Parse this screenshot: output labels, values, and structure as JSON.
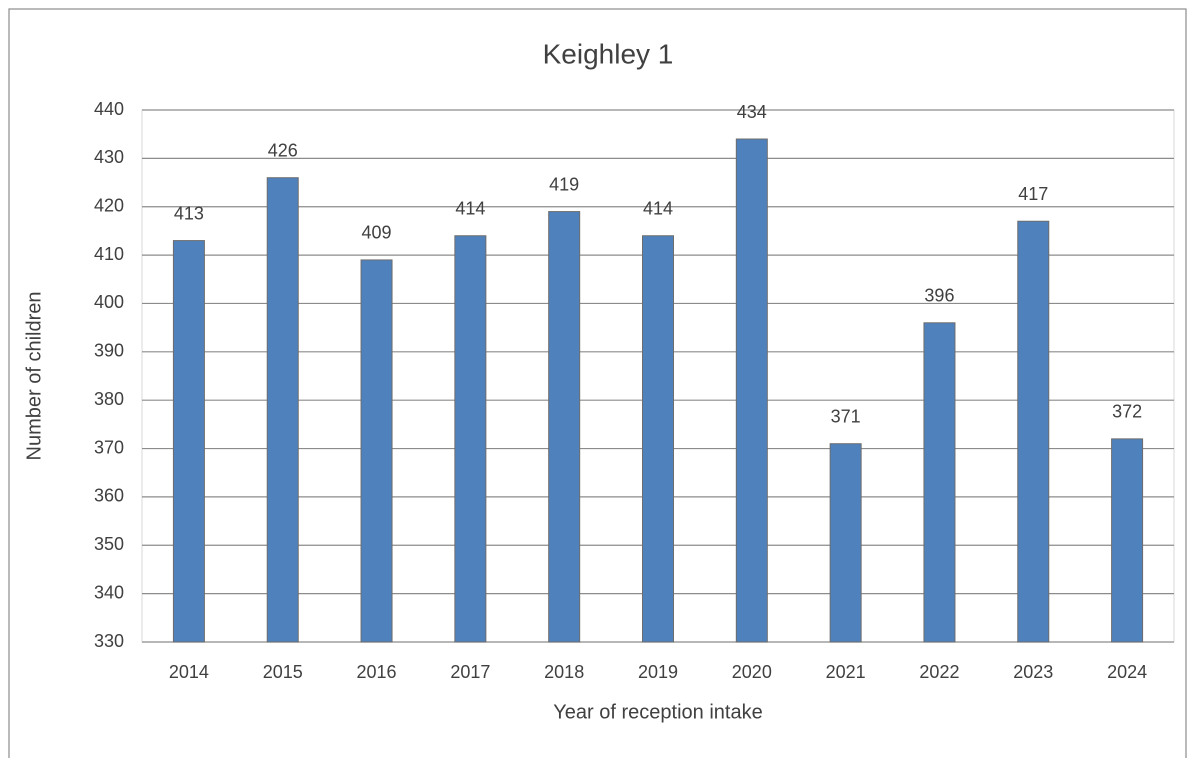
{
  "chart_data": {
    "type": "bar",
    "title": "Keighley 1",
    "x_label": "Year of reception intake",
    "y_label": "Number of children",
    "categories": [
      "2014",
      "2015",
      "2016",
      "2017",
      "2018",
      "2019",
      "2020",
      "2021",
      "2022",
      "2023",
      "2024"
    ],
    "values": [
      413,
      426,
      409,
      414,
      419,
      414,
      434,
      371,
      396,
      417,
      372
    ],
    "color": "#4f81bd",
    "ylim": [
      330,
      440
    ],
    "yticks": [
      330,
      340,
      350,
      360,
      370,
      380,
      390,
      400,
      410,
      420,
      430,
      440
    ],
    "grid": true
  }
}
